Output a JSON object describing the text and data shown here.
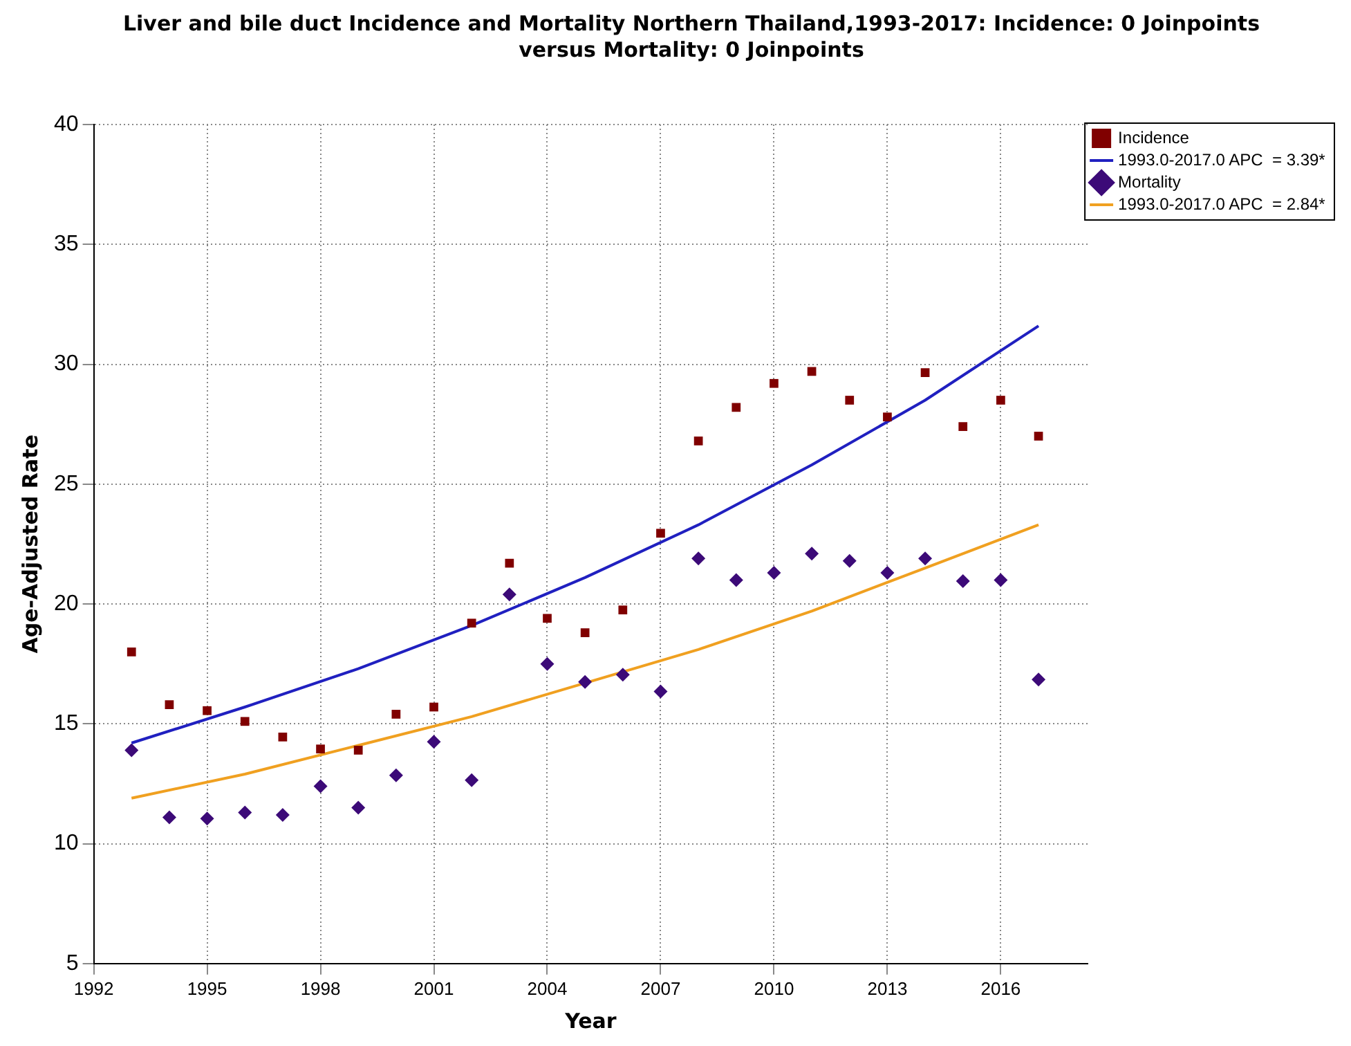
{
  "chart_data": {
    "type": "scatter",
    "title": "Liver and bile duct Incidence and Mortality Northern Thailand,1993-2017: Incidence: 0 Joinpoints  versus  Mortality: 0 Joinpoints",
    "xlabel": "Year",
    "ylabel": "Age-Adjusted Rate",
    "x": [
      1993,
      1994,
      1995,
      1996,
      1997,
      1998,
      1999,
      2000,
      2001,
      2002,
      2003,
      2004,
      2005,
      2006,
      2007,
      2008,
      2009,
      2010,
      2011,
      2012,
      2013,
      2014,
      2015,
      2016,
      2017
    ],
    "series": [
      {
        "name": "Incidence",
        "marker": "square",
        "color": "#800000",
        "values": [
          18.0,
          15.8,
          15.55,
          15.1,
          14.45,
          13.95,
          13.9,
          15.4,
          15.7,
          19.2,
          21.7,
          19.4,
          18.8,
          19.75,
          22.95,
          26.8,
          28.2,
          29.2,
          29.7,
          28.5,
          27.8,
          29.65,
          27.4,
          28.5,
          27.0
        ]
      },
      {
        "name": "1993.0-2017.0 APC  = 3.39*",
        "type": "line",
        "marker": "none",
        "color": "#2020c0",
        "x": [
          1993,
          1996,
          1999,
          2002,
          2005,
          2008,
          2011,
          2014,
          2017
        ],
        "values": [
          14.2,
          15.7,
          17.3,
          19.1,
          21.1,
          23.3,
          25.8,
          28.5,
          31.6
        ]
      },
      {
        "name": "Mortality",
        "marker": "diamond",
        "color": "#3c0a78",
        "values": [
          13.9,
          11.1,
          11.05,
          11.3,
          11.2,
          12.4,
          11.5,
          12.85,
          14.25,
          12.65,
          20.4,
          17.5,
          16.75,
          17.05,
          16.35,
          21.9,
          21.0,
          21.3,
          22.1,
          21.8,
          21.3,
          21.9,
          20.95,
          21.0,
          16.85
        ]
      },
      {
        "name": "1993.0-2017.0 APC  = 2.84*",
        "type": "line",
        "marker": "none",
        "color": "#f0a020",
        "x": [
          1993,
          1996,
          1999,
          2002,
          2005,
          2008,
          2011,
          2014,
          2017
        ],
        "values": [
          11.9,
          12.9,
          14.1,
          15.3,
          16.7,
          18.1,
          19.7,
          21.5,
          23.3
        ]
      }
    ],
    "xlim": [
      1992,
      2018.3
    ],
    "xticks": [
      1992,
      1995,
      1998,
      2001,
      2004,
      2007,
      2010,
      2013,
      2016
    ],
    "ylim": [
      5,
      40
    ],
    "yticks": [
      5,
      10,
      15,
      20,
      25,
      30,
      35,
      40
    ],
    "grid": true,
    "legend": "top right"
  }
}
